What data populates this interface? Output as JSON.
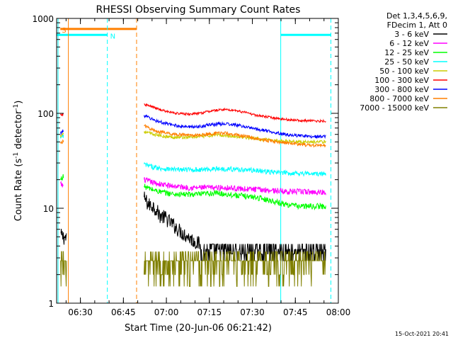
{
  "chart_data": {
    "type": "line",
    "title": "RHESSI Observing Summary Count Rates",
    "xlabel": "Start Time (20-Jun-06 06:21:42)",
    "ylabel_main": "Count Rate (s",
    "ylabel_sup1": "-1",
    "ylabel_mid": " detector",
    "ylabel_sup2": "-1",
    "ylabel_end": ")",
    "yscale": "log",
    "ylim": [
      1,
      1000
    ],
    "xlim_minutes": [
      0,
      98.3
    ],
    "x_ticks": [
      {
        "label": "06:30",
        "min": 8.3
      },
      {
        "label": "06:45",
        "min": 23.3
      },
      {
        "label": "07:00",
        "min": 38.3
      },
      {
        "label": "07:15",
        "min": 53.3
      },
      {
        "label": "07:30",
        "min": 68.3
      },
      {
        "label": "07:45",
        "min": 83.3
      },
      {
        "label": "08:00",
        "min": 98.3
      }
    ],
    "y_ticks": [
      {
        "label": "1",
        "value": 1
      },
      {
        "label": "10",
        "value": 10
      },
      {
        "label": "100",
        "value": 100
      },
      {
        "label": "1000",
        "value": 1000
      }
    ],
    "legend_header": [
      "Det 1,3,4,5,6,9,",
      "FDecim 1, Att 0"
    ],
    "timestamp": "15-Oct-2021 20:41",
    "flags": [
      {
        "label": "S",
        "color": "#ff7f00",
        "start_min": 1.3,
        "end_min": 27.9,
        "y": 775
      },
      {
        "label": "N",
        "color": "#00ffff",
        "start_min": 0,
        "end_min": 17.7,
        "y": 670
      },
      {
        "label": "",
        "color": "#00ffff",
        "start_min": 78.2,
        "end_min": 95.7,
        "y": 670
      }
    ],
    "vlines": [
      {
        "min": 0.5,
        "color": "#00ffff",
        "style": "solid"
      },
      {
        "min": 4.1,
        "color": "#ff7f00",
        "style": "solid"
      },
      {
        "min": 17.7,
        "color": "#00ffff",
        "style": "dashed"
      },
      {
        "min": 27.9,
        "color": "#ff7f00",
        "style": "dashed"
      },
      {
        "min": 78.2,
        "color": "#00ffff",
        "style": "solid"
      },
      {
        "min": 95.7,
        "color": "#00ffff",
        "style": "dashed"
      }
    ],
    "series": [
      {
        "name": "3 - 6 keV",
        "color": "#000000",
        "points": [
          [
            1.5,
            5.2
          ],
          [
            3.5,
            4.8
          ],
          [
            30.5,
            13
          ],
          [
            32,
            11
          ],
          [
            34,
            10.5
          ],
          [
            36,
            8.5
          ],
          [
            38,
            8
          ],
          [
            40,
            7
          ],
          [
            42,
            6.2
          ],
          [
            44,
            5.5
          ],
          [
            46,
            5
          ],
          [
            48,
            4.5
          ],
          [
            50,
            4.2
          ],
          [
            54,
            4
          ],
          [
            58,
            3.9
          ],
          [
            62,
            3.8
          ],
          [
            66,
            3.6
          ],
          [
            70,
            3.5
          ],
          [
            75,
            3.4
          ],
          [
            80,
            3.3
          ],
          [
            85,
            3.3
          ],
          [
            90,
            3.2
          ],
          [
            94,
            3.2
          ]
        ]
      },
      {
        "name": "6 - 12 keV",
        "color": "#ff00ff",
        "points": [
          [
            1.3,
            18
          ],
          [
            2.5,
            17
          ],
          [
            30.5,
            20
          ],
          [
            34,
            18.5
          ],
          [
            38,
            17.5
          ],
          [
            42,
            17
          ],
          [
            46,
            16.5
          ],
          [
            50,
            16.5
          ],
          [
            55,
            16.5
          ],
          [
            60,
            16.5
          ],
          [
            65,
            16
          ],
          [
            70,
            15.8
          ],
          [
            75,
            15.5
          ],
          [
            80,
            15
          ],
          [
            85,
            15
          ],
          [
            90,
            14.8
          ],
          [
            94,
            14.8
          ]
        ]
      },
      {
        "name": "12 - 25 keV",
        "color": "#00ff00",
        "points": [
          [
            1.3,
            20
          ],
          [
            2.5,
            22
          ],
          [
            30.5,
            17
          ],
          [
            34,
            15.5
          ],
          [
            38,
            14.5
          ],
          [
            42,
            14
          ],
          [
            46,
            14
          ],
          [
            50,
            14
          ],
          [
            55,
            14.5
          ],
          [
            60,
            14
          ],
          [
            65,
            13.5
          ],
          [
            70,
            13
          ],
          [
            75,
            12
          ],
          [
            80,
            11
          ],
          [
            85,
            10.5
          ],
          [
            90,
            10.5
          ],
          [
            94,
            10.5
          ]
        ]
      },
      {
        "name": "25 - 50 keV",
        "color": "#00ffff",
        "points": [
          [
            1.3,
            55
          ],
          [
            2.5,
            58
          ],
          [
            30.5,
            29
          ],
          [
            34,
            27
          ],
          [
            38,
            26
          ],
          [
            42,
            25.5
          ],
          [
            46,
            25.5
          ],
          [
            50,
            25.5
          ],
          [
            55,
            26
          ],
          [
            60,
            26
          ],
          [
            65,
            25.5
          ],
          [
            70,
            25
          ],
          [
            75,
            24
          ],
          [
            80,
            23.5
          ],
          [
            85,
            23.5
          ],
          [
            90,
            23
          ],
          [
            94,
            23
          ]
        ]
      },
      {
        "name": "50 - 100 keV",
        "color": "#cccc00",
        "points": [
          [
            1.3,
            58
          ],
          [
            2.5,
            62
          ],
          [
            30.5,
            64
          ],
          [
            34,
            60
          ],
          [
            38,
            57
          ],
          [
            42,
            56
          ],
          [
            46,
            56
          ],
          [
            50,
            57
          ],
          [
            55,
            59
          ],
          [
            60,
            58
          ],
          [
            65,
            56
          ],
          [
            70,
            54
          ],
          [
            75,
            52
          ],
          [
            80,
            51
          ],
          [
            85,
            50
          ],
          [
            90,
            50
          ],
          [
            94,
            50
          ]
        ]
      },
      {
        "name": "100 - 300 keV",
        "color": "#ff0000",
        "points": [
          [
            1.3,
            95
          ],
          [
            2.5,
            98
          ],
          [
            30.5,
            125
          ],
          [
            34,
            115
          ],
          [
            38,
            105
          ],
          [
            42,
            100
          ],
          [
            46,
            98
          ],
          [
            50,
            100
          ],
          [
            54,
            106
          ],
          [
            58,
            110
          ],
          [
            62,
            108
          ],
          [
            66,
            102
          ],
          [
            70,
            95
          ],
          [
            75,
            90
          ],
          [
            80,
            86
          ],
          [
            85,
            84
          ],
          [
            90,
            83
          ],
          [
            94,
            83
          ]
        ]
      },
      {
        "name": "300 - 800 keV",
        "color": "#0000ff",
        "points": [
          [
            1.3,
            62
          ],
          [
            2.5,
            66
          ],
          [
            30.5,
            95
          ],
          [
            34,
            85
          ],
          [
            38,
            78
          ],
          [
            42,
            74
          ],
          [
            46,
            72
          ],
          [
            50,
            73
          ],
          [
            54,
            76
          ],
          [
            58,
            78
          ],
          [
            62,
            76
          ],
          [
            66,
            72
          ],
          [
            70,
            68
          ],
          [
            75,
            64
          ],
          [
            80,
            60
          ],
          [
            85,
            58
          ],
          [
            90,
            57
          ],
          [
            94,
            57
          ]
        ]
      },
      {
        "name": "800 - 7000 keV",
        "color": "#ff7f00",
        "points": [
          [
            1.3,
            48
          ],
          [
            2.5,
            52
          ],
          [
            30.5,
            74
          ],
          [
            34,
            66
          ],
          [
            38,
            62
          ],
          [
            42,
            60
          ],
          [
            46,
            59
          ],
          [
            50,
            59
          ],
          [
            54,
            61
          ],
          [
            58,
            62
          ],
          [
            62,
            60
          ],
          [
            66,
            57
          ],
          [
            70,
            54
          ],
          [
            75,
            51
          ],
          [
            80,
            49
          ],
          [
            85,
            47
          ],
          [
            90,
            46
          ],
          [
            94,
            46
          ]
        ]
      },
      {
        "name": "7000 - 15000 keV",
        "color": "#808000",
        "points": [
          [
            1.3,
            3.2
          ],
          [
            2.5,
            2.5
          ],
          [
            3.5,
            3.5
          ],
          [
            30.5,
            3
          ],
          [
            35,
            2.5
          ],
          [
            40,
            2.5
          ],
          [
            45,
            2.6
          ],
          [
            50,
            2.5
          ],
          [
            55,
            2.6
          ],
          [
            60,
            2.6
          ],
          [
            65,
            2.6
          ],
          [
            70,
            2.7
          ],
          [
            75,
            2.7
          ],
          [
            80,
            2.8
          ],
          [
            85,
            2.8
          ],
          [
            90,
            2.8
          ],
          [
            94,
            2.8
          ]
        ]
      }
    ]
  }
}
